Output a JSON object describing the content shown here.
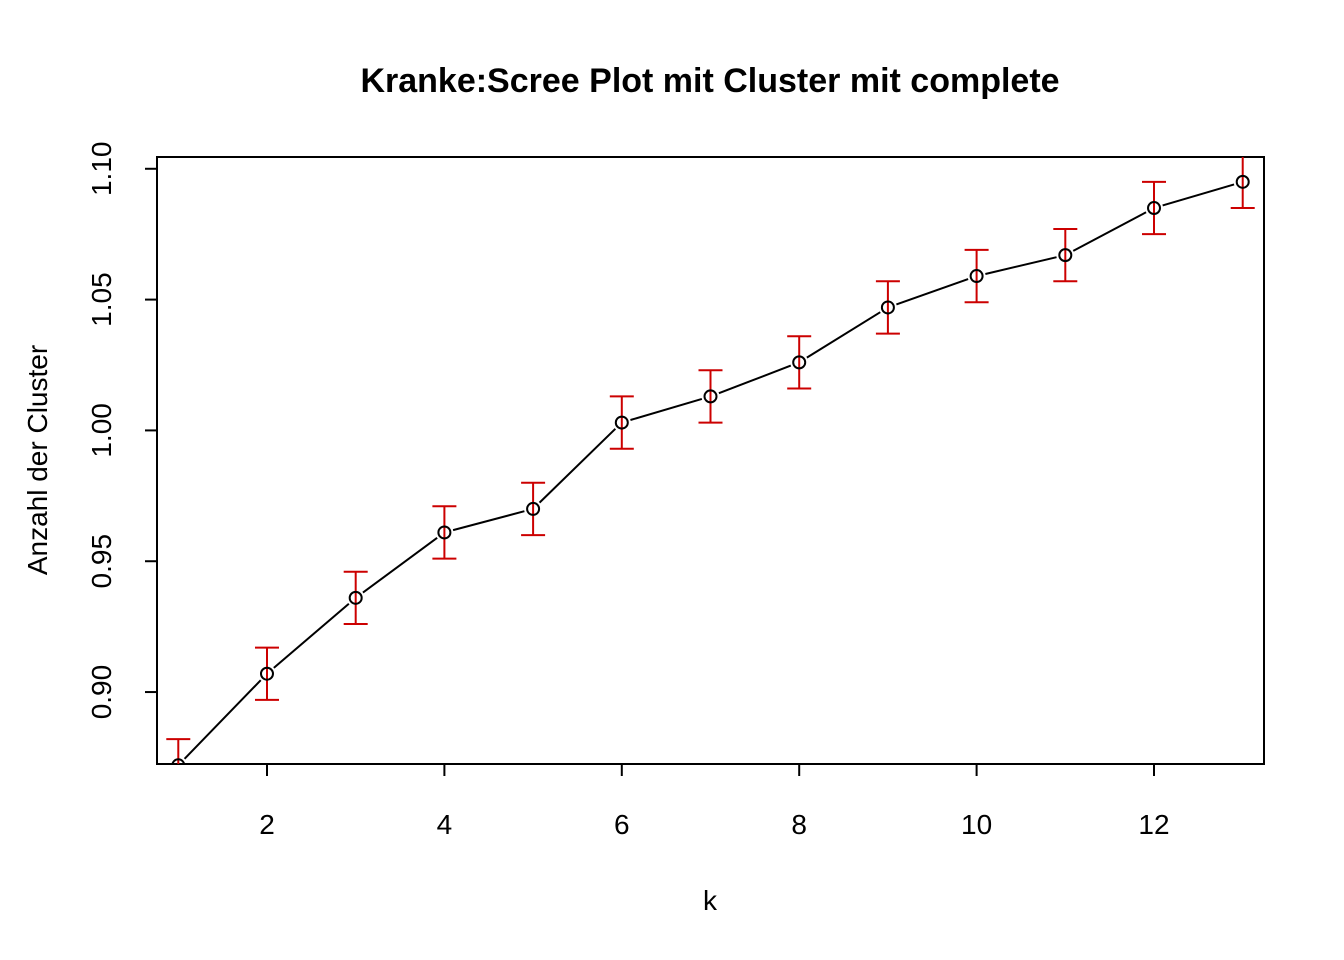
{
  "chart_data": {
    "type": "line",
    "title": "Kranke:Scree Plot mit Cluster mit complete",
    "xlabel": "k",
    "ylabel": "Anzahl der Cluster",
    "xlim": [
      0.76,
      13.24
    ],
    "ylim": [
      0.8725,
      1.1045
    ],
    "xticks": [
      2,
      4,
      6,
      8,
      10,
      12
    ],
    "xtick_labels": [
      "2",
      "4",
      "6",
      "8",
      "10",
      "12"
    ],
    "yticks": [
      0.9,
      0.95,
      1.0,
      1.05,
      1.1
    ],
    "ytick_labels": [
      "0.90",
      "0.95",
      "1.00",
      "1.05",
      "1.10"
    ],
    "grid": false,
    "colors": {
      "line": "#000000",
      "points": "#000000",
      "error_bars": "#cc0000",
      "frame": "#000000"
    },
    "series": [
      {
        "x": [
          1,
          2,
          3,
          4,
          5,
          6,
          7,
          8,
          9,
          10,
          11,
          12,
          13
        ],
        "y": [
          0.872,
          0.907,
          0.936,
          0.961,
          0.97,
          1.003,
          1.013,
          1.026,
          1.047,
          1.059,
          1.067,
          1.085,
          1.095
        ],
        "lower": [
          0.862,
          0.897,
          0.926,
          0.951,
          0.96,
          0.993,
          1.003,
          1.016,
          1.037,
          1.049,
          1.057,
          1.075,
          1.085
        ],
        "upper": [
          0.882,
          0.917,
          0.946,
          0.971,
          0.98,
          1.013,
          1.023,
          1.036,
          1.057,
          1.069,
          1.077,
          1.095,
          1.105
        ]
      }
    ]
  }
}
